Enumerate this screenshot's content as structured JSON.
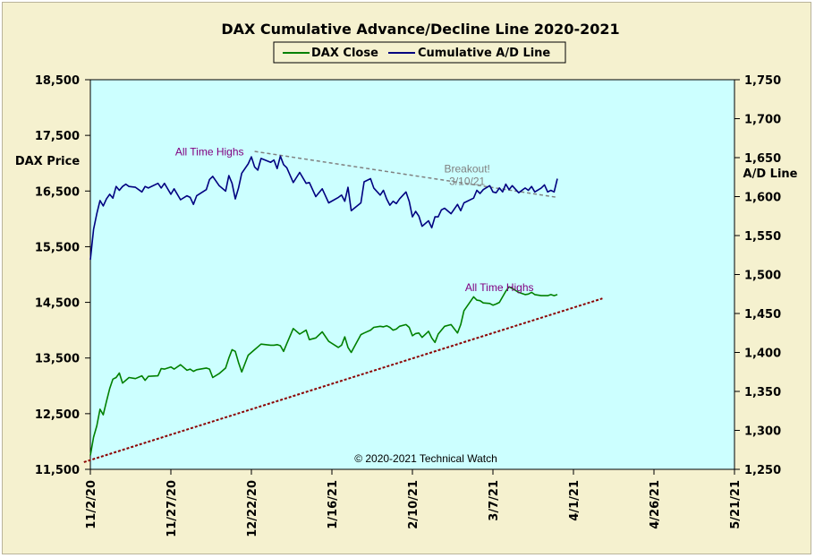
{
  "chart_data": {
    "type": "line",
    "title": "DAX Cumulative  Advance/Decline  Line  2020-2021",
    "ylabel_left": "DAX Price",
    "ylabel_right": "A/D Line",
    "ylim_left": [
      11500,
      18500
    ],
    "ylim_right": [
      1250,
      1750
    ],
    "left_ticks": [
      11500,
      12500,
      13500,
      14500,
      15500,
      16500,
      17500,
      18500
    ],
    "left_tick_labels": [
      "11,500",
      "12,500",
      "13,500",
      "14,500",
      "15,500",
      "16,500",
      "17,500",
      "18,500"
    ],
    "right_ticks": [
      1250,
      1300,
      1350,
      1400,
      1450,
      1500,
      1550,
      1600,
      1650,
      1700,
      1750
    ],
    "right_tick_labels": [
      "1,250",
      "1,300",
      "1,350",
      "1,400",
      "1,450",
      "1,500",
      "1,550",
      "1,600",
      "1,650",
      "1,700",
      "1,750"
    ],
    "x_tick_labels": [
      "11/2/20",
      "11/27/20",
      "12/22/20",
      "1/16/21",
      "2/10/21",
      "3/7/21",
      "4/1/21",
      "4/26/21",
      "5/21/21"
    ],
    "x_range_days": [
      0,
      200
    ],
    "legend": {
      "placement": "top-center",
      "entries": [
        "DAX Close",
        "Cumulative A/D Line"
      ]
    },
    "colors": {
      "plot_bg": "#ccffff",
      "frame_bg": "#f5f1cf",
      "dax": "#008000",
      "ad": "#000080",
      "dax_trend": "#8b0000",
      "ad_trend": "#808080",
      "annot_highs": "#800080",
      "annot_breakout": "#808080"
    },
    "series": [
      {
        "name": "DAX Close",
        "axis": "left",
        "x": [
          0,
          1,
          2,
          3,
          4,
          5,
          6,
          7,
          8,
          9,
          10,
          11,
          12,
          14,
          16,
          17,
          18,
          21,
          22,
          23,
          25,
          26,
          28,
          30,
          31,
          32,
          33,
          36,
          37,
          38,
          40,
          42,
          43,
          44,
          45,
          46,
          47,
          49,
          50,
          51,
          52,
          53,
          56,
          57,
          58,
          59,
          60,
          61,
          63,
          65,
          67,
          68,
          70,
          72,
          74,
          77,
          78,
          79,
          80,
          81,
          84,
          85,
          87,
          88,
          90,
          91,
          92,
          93,
          94,
          95,
          96,
          98,
          99,
          100,
          101,
          102,
          103,
          105,
          106,
          107,
          108,
          109,
          110,
          112,
          114,
          115,
          116,
          119,
          120,
          121,
          122,
          124,
          125,
          126,
          127,
          128,
          129,
          130,
          131,
          133,
          135,
          136,
          137,
          138,
          140,
          141,
          142,
          143,
          144,
          145
        ],
        "values": [
          11750,
          12080,
          12280,
          12580,
          12480,
          12720,
          12950,
          13120,
          13150,
          13230,
          13050,
          13100,
          13150,
          13130,
          13180,
          13100,
          13170,
          13180,
          13310,
          13300,
          13340,
          13300,
          13380,
          13280,
          13300,
          13260,
          13290,
          13320,
          13300,
          13150,
          13220,
          13320,
          13500,
          13650,
          13620,
          13420,
          13250,
          13550,
          13600,
          13650,
          13700,
          13750,
          13730,
          13730,
          13740,
          13720,
          13620,
          13760,
          14030,
          13930,
          14000,
          13830,
          13860,
          13970,
          13800,
          13690,
          13730,
          13880,
          13690,
          13600,
          13920,
          13950,
          14000,
          14050,
          14070,
          14060,
          14080,
          14050,
          14000,
          14020,
          14070,
          14100,
          14050,
          13900,
          13940,
          13950,
          13870,
          13980,
          13860,
          13780,
          13930,
          14000,
          14070,
          14100,
          13950,
          14100,
          14350,
          14600,
          14540,
          14530,
          14490,
          14480,
          14450,
          14470,
          14500,
          14600,
          14700,
          14780,
          14750,
          14680,
          14640,
          14650,
          14680,
          14640,
          14620,
          14620,
          14620,
          14640,
          14620,
          14640
        ]
      },
      {
        "name": "Cumulative A/D Line",
        "axis": "right",
        "x": [
          0,
          1,
          2,
          3,
          4,
          5,
          6,
          7,
          8,
          9,
          10,
          11,
          12,
          14,
          16,
          17,
          18,
          21,
          22,
          23,
          25,
          26,
          28,
          30,
          31,
          32,
          33,
          36,
          37,
          38,
          40,
          42,
          43,
          44,
          45,
          46,
          47,
          49,
          50,
          51,
          52,
          53,
          56,
          57,
          58,
          59,
          60,
          61,
          63,
          65,
          67,
          68,
          70,
          72,
          74,
          77,
          78,
          79,
          80,
          81,
          84,
          85,
          87,
          88,
          90,
          91,
          92,
          93,
          94,
          95,
          96,
          98,
          99,
          100,
          101,
          102,
          103,
          105,
          106,
          107,
          108,
          109,
          110,
          112,
          114,
          115,
          116,
          119,
          120,
          121,
          122,
          124,
          125,
          126,
          127,
          128,
          129,
          130,
          131,
          133,
          135,
          136,
          137,
          138,
          140,
          141,
          142,
          143,
          144,
          145
        ],
        "values": [
          1519,
          1558,
          1578,
          1595,
          1588,
          1597,
          1603,
          1598,
          1613,
          1608,
          1613,
          1616,
          1613,
          1612,
          1606,
          1613,
          1611,
          1617,
          1611,
          1617,
          1603,
          1610,
          1596,
          1601,
          1599,
          1590,
          1601,
          1609,
          1622,
          1626,
          1614,
          1607,
          1627,
          1617,
          1597,
          1611,
          1630,
          1642,
          1651,
          1638,
          1634,
          1649,
          1644,
          1647,
          1636,
          1652,
          1641,
          1637,
          1618,
          1631,
          1617,
          1618,
          1600,
          1610,
          1592,
          1599,
          1602,
          1594,
          1612,
          1582,
          1592,
          1619,
          1623,
          1611,
          1602,
          1608,
          1597,
          1589,
          1594,
          1591,
          1597,
          1606,
          1594,
          1574,
          1581,
          1575,
          1562,
          1569,
          1560,
          1574,
          1574,
          1583,
          1585,
          1578,
          1590,
          1582,
          1592,
          1598,
          1608,
          1604,
          1609,
          1614,
          1606,
          1605,
          1611,
          1606,
          1616,
          1609,
          1614,
          1605,
          1611,
          1608,
          1613,
          1606,
          1611,
          1615,
          1606,
          1608,
          1606,
          1623
        ]
      }
    ],
    "trendlines": [
      {
        "name": "dax-support",
        "axis": "left",
        "x": [
          -2,
          159
        ],
        "values": [
          11630,
          14570
        ],
        "style": "dashed"
      },
      {
        "name": "ad-resistance",
        "axis": "right",
        "x": [
          51,
          145
        ],
        "values": [
          1658,
          1599
        ],
        "style": "dashed"
      }
    ],
    "annotations": [
      {
        "text": "All Time Highs",
        "axis": "right",
        "x": 37,
        "y": 1653,
        "color": "annot_highs"
      },
      {
        "text": "All Time Highs",
        "axis": "left",
        "x": 127,
        "y": 14700,
        "color": "annot_highs"
      },
      {
        "text": "Breakout!",
        "axis": "right",
        "x": 117,
        "y": 1631,
        "color": "annot_breakout"
      },
      {
        "text": "3/10/21",
        "axis": "right",
        "x": 117,
        "y": 1615,
        "color": "annot_breakout"
      }
    ],
    "copyright": "© 2020-2021  Technical Watch",
    "grid": false
  }
}
